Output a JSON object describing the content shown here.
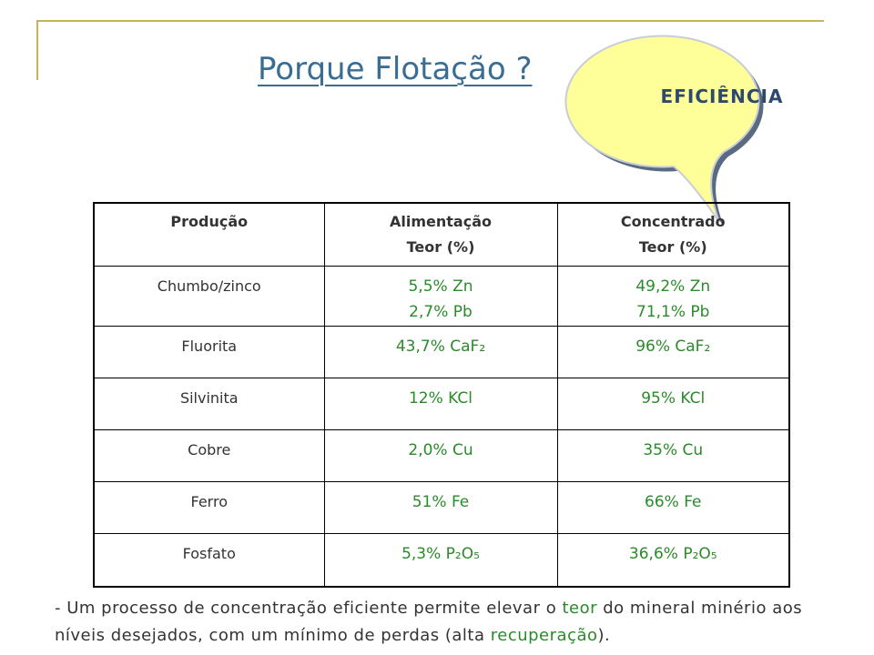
{
  "title": "Porque Flotação ?",
  "callout": "EFICIÊNCIA",
  "table": {
    "headers": [
      {
        "line1": "Produção",
        "line2": ""
      },
      {
        "line1": "Alimentação",
        "line2": "Teor (%)"
      },
      {
        "line1": "Concentrado",
        "line2": "Teor (%)"
      }
    ],
    "rows": [
      {
        "produto": "Chumbo/zinco",
        "alimentacao": [
          "5,5% Zn",
          "2,7% Pb"
        ],
        "concentrado": [
          "49,2% Zn",
          "71,1% Pb"
        ]
      },
      {
        "produto": "Fluorita",
        "alimentacao": [
          "43,7% CaF₂"
        ],
        "concentrado": [
          "96% CaF₂"
        ]
      },
      {
        "produto": "Silvinita",
        "alimentacao": [
          "12% KCl"
        ],
        "concentrado": [
          "95% KCl"
        ]
      },
      {
        "produto": "Cobre",
        "alimentacao": [
          "2,0% Cu"
        ],
        "concentrado": [
          "35% Cu"
        ]
      },
      {
        "produto": "Ferro",
        "alimentacao": [
          "51% Fe"
        ],
        "concentrado": [
          "66% Fe"
        ]
      },
      {
        "produto": "Fosfato",
        "alimentacao": [
          "5,3% P₂O₅"
        ],
        "concentrado": [
          "36,6% P₂O₅"
        ]
      }
    ]
  },
  "note": {
    "part1": "- Um processo de concentração eficiente permite elevar o ",
    "teor": "teor",
    "part2": " do mineral minério aos níveis desejados, com um mínimo de perdas (alta ",
    "recuperacao": "recuperação",
    "part3": ")."
  },
  "colors": {
    "accent_green": "#2b8a2b",
    "title_blue": "#3a6d94",
    "bubble_fill": "#ffff99",
    "frame": "#c9b25a"
  }
}
